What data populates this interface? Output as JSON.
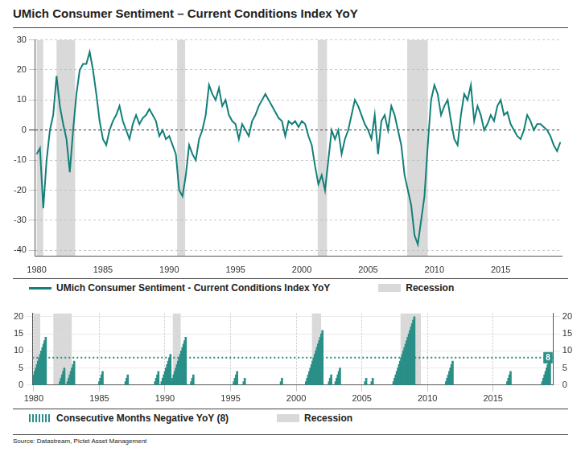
{
  "chart_data": [
    {
      "type": "line",
      "title": "UMich Consumer Sentiment – Current Conditions Index YoY",
      "x": [
        1980,
        1980.25,
        1980.5,
        1980.75,
        1981,
        1981.25,
        1981.5,
        1981.75,
        1982,
        1982.25,
        1982.5,
        1982.75,
        1983,
        1983.25,
        1983.5,
        1983.75,
        1984,
        1984.25,
        1984.5,
        1984.75,
        1985,
        1985.25,
        1985.5,
        1985.75,
        1986,
        1986.25,
        1986.5,
        1986.75,
        1987,
        1987.25,
        1987.5,
        1987.75,
        1988,
        1988.25,
        1988.5,
        1988.75,
        1989,
        1989.25,
        1989.5,
        1989.75,
        1990,
        1990.25,
        1990.5,
        1990.75,
        1991,
        1991.25,
        1991.5,
        1991.75,
        1992,
        1992.25,
        1992.5,
        1992.75,
        1993,
        1993.25,
        1993.5,
        1993.75,
        1994,
        1994.25,
        1994.5,
        1994.75,
        1995,
        1995.25,
        1995.5,
        1995.75,
        1996,
        1996.25,
        1996.5,
        1996.75,
        1997,
        1997.25,
        1997.5,
        1997.75,
        1998,
        1998.25,
        1998.5,
        1998.75,
        1999,
        1999.25,
        1999.5,
        1999.75,
        2000,
        2000.25,
        2000.5,
        2000.75,
        2001,
        2001.25,
        2001.5,
        2001.75,
        2002,
        2002.25,
        2002.5,
        2002.75,
        2003,
        2003.25,
        2003.5,
        2003.75,
        2004,
        2004.25,
        2004.5,
        2004.75,
        2005,
        2005.25,
        2005.5,
        2005.75,
        2006,
        2006.25,
        2006.5,
        2006.75,
        2007,
        2007.25,
        2007.5,
        2007.75,
        2008,
        2008.25,
        2008.5,
        2008.75,
        2009,
        2009.25,
        2009.5,
        2009.75,
        2010,
        2010.25,
        2010.5,
        2010.75,
        2011,
        2011.25,
        2011.5,
        2011.75,
        2012,
        2012.25,
        2012.5,
        2012.75,
        2013,
        2013.25,
        2013.5,
        2013.75,
        2014,
        2014.25,
        2014.5,
        2014.75,
        2015,
        2015.25,
        2015.5,
        2015.75,
        2016,
        2016.25,
        2016.5,
        2016.75,
        2017,
        2017.25,
        2017.5,
        2017.75,
        2018,
        2018.25,
        2018.5,
        2018.75,
        2019,
        2019.25,
        2019.5
      ],
      "series": [
        {
          "name": "UMich Consumer Sentiment - Current Conditions Index YoY",
          "color": "#137f78",
          "values": [
            -8,
            -6,
            -26,
            -10,
            0,
            5,
            18,
            8,
            2,
            -3,
            -14,
            0,
            12,
            20,
            22,
            22,
            26,
            20,
            12,
            3,
            -3,
            -5,
            0,
            3,
            5,
            8,
            3,
            0,
            -3,
            2,
            5,
            2,
            4,
            5,
            7,
            5,
            3,
            -2,
            0,
            -3,
            -2,
            -5,
            -8,
            -20,
            -22,
            -15,
            -5,
            -8,
            -10,
            -3,
            0,
            5,
            15,
            12,
            10,
            14,
            8,
            10,
            5,
            3,
            2,
            -3,
            2,
            0,
            -2,
            3,
            5,
            8,
            10,
            12,
            10,
            8,
            6,
            4,
            3,
            -2,
            3,
            2,
            3,
            1,
            3,
            2,
            -2,
            -5,
            -12,
            -18,
            -15,
            -20,
            -10,
            0,
            -3,
            0,
            -8,
            -3,
            0,
            5,
            10,
            8,
            5,
            2,
            0,
            -3,
            5,
            -8,
            3,
            5,
            0,
            8,
            5,
            0,
            -5,
            -15,
            -20,
            -25,
            -35,
            -38,
            -30,
            -22,
            -5,
            10,
            15,
            12,
            5,
            8,
            10,
            3,
            -3,
            -5,
            5,
            12,
            10,
            15,
            3,
            8,
            5,
            0,
            2,
            5,
            3,
            8,
            10,
            5,
            6,
            2,
            0,
            -2,
            -3,
            0,
            5,
            3,
            0,
            2,
            2,
            1,
            0,
            -2,
            -5,
            -7,
            -4
          ]
        }
      ],
      "recessions": [
        {
          "start": 1980.0,
          "end": 1980.5
        },
        {
          "start": 1981.5,
          "end": 1982.9
        },
        {
          "start": 1990.6,
          "end": 1991.2
        },
        {
          "start": 2001.2,
          "end": 2001.9
        },
        {
          "start": 2007.95,
          "end": 2009.5
        }
      ],
      "recession_label": "Recession",
      "xlim": [
        1979.9,
        2019.6
      ],
      "xticks": [
        1980,
        1985,
        1990,
        1995,
        2000,
        2005,
        2010,
        2015
      ],
      "ylim": [
        -42,
        30
      ],
      "yticks": [
        -40,
        -30,
        -20,
        -10,
        0,
        10,
        20,
        30
      ],
      "grid": true
    },
    {
      "type": "bar",
      "x": [
        1980,
        1980.083,
        1980.167,
        1980.25,
        1980.333,
        1980.417,
        1980.5,
        1980.583,
        1980.667,
        1980.75,
        1980.833,
        1980.917,
        1982,
        1982.083,
        1982.167,
        1982.25,
        1982.333,
        1982.583,
        1982.667,
        1982.75,
        1982.833,
        1982.917,
        1983,
        1983.083,
        1985,
        1985.083,
        1985.167,
        1985.25,
        1987,
        1987.083,
        1987.167,
        1989.25,
        1989.333,
        1989.417,
        1989.5,
        1989.75,
        1989.833,
        1989.917,
        1990,
        1990.083,
        1990.167,
        1990.25,
        1990.333,
        1990.417,
        1990.5,
        1990.583,
        1990.667,
        1990.75,
        1990.833,
        1990.917,
        1991,
        1991.083,
        1991.167,
        1991.25,
        1991.333,
        1991.417,
        1991.5,
        1991.583,
        1992,
        1992.083,
        1992.167,
        1995.25,
        1995.333,
        1995.417,
        1995.5,
        1996,
        1996.083,
        1998.833,
        1998.917,
        2000.75,
        2000.833,
        2000.917,
        2001,
        2001.083,
        2001.167,
        2001.25,
        2001.333,
        2001.417,
        2001.5,
        2001.583,
        2001.667,
        2001.75,
        2001.833,
        2001.917,
        2002,
        2002.5,
        2002.583,
        2002.667,
        2003,
        2003.083,
        2003.167,
        2003.25,
        2003.333,
        2005.25,
        2005.333,
        2005.75,
        2005.833,
        2007.417,
        2007.5,
        2007.583,
        2007.667,
        2007.75,
        2007.833,
        2007.917,
        2008,
        2008.083,
        2008.167,
        2008.25,
        2008.333,
        2008.417,
        2008.5,
        2008.583,
        2008.667,
        2008.75,
        2008.833,
        2008.917,
        2009,
        2011.417,
        2011.5,
        2011.583,
        2011.667,
        2011.75,
        2011.833,
        2011.917,
        2016.083,
        2016.167,
        2016.25,
        2016.333,
        2018.75,
        2018.833,
        2018.917,
        2019,
        2019.083,
        2019.167,
        2019.25,
        2019.333
      ],
      "series": [
        {
          "name": "Consecutive Months Negative YoY (8)",
          "color": "#2a8f87",
          "values": [
            3,
            4,
            5,
            6,
            7,
            8,
            9,
            10,
            11,
            12,
            13,
            14,
            1,
            2,
            3,
            4,
            5,
            1,
            2,
            3,
            4,
            5,
            6,
            7,
            1,
            2,
            3,
            4,
            1,
            2,
            3,
            1,
            2,
            3,
            4,
            1,
            2,
            3,
            4,
            5,
            6,
            7,
            8,
            9,
            1,
            2,
            3,
            4,
            5,
            6,
            7,
            8,
            9,
            10,
            11,
            12,
            13,
            14,
            1,
            2,
            3,
            1,
            2,
            3,
            4,
            1,
            2,
            1,
            2,
            1,
            2,
            3,
            4,
            5,
            6,
            7,
            8,
            9,
            10,
            11,
            12,
            13,
            14,
            15,
            16,
            1,
            2,
            3,
            1,
            2,
            3,
            4,
            5,
            1,
            2,
            1,
            2,
            1,
            2,
            3,
            4,
            5,
            6,
            7,
            8,
            9,
            10,
            11,
            12,
            13,
            14,
            15,
            16,
            17,
            18,
            19,
            20,
            1,
            2,
            3,
            4,
            5,
            6,
            7,
            1,
            2,
            3,
            4,
            1,
            2,
            3,
            4,
            5,
            6,
            7,
            8
          ]
        }
      ],
      "recessions": [
        {
          "start": 1980.0,
          "end": 1980.5
        },
        {
          "start": 1981.5,
          "end": 1982.9
        },
        {
          "start": 1990.6,
          "end": 1991.2
        },
        {
          "start": 2001.2,
          "end": 2001.9
        },
        {
          "start": 2007.95,
          "end": 2009.5
        }
      ],
      "recession_label": "Recession",
      "threshold": 8,
      "xlim": [
        1979.9,
        2019.6
      ],
      "xticks": [
        1980,
        1985,
        1990,
        1995,
        2000,
        2005,
        2010,
        2015
      ],
      "ylim": [
        0,
        21
      ],
      "yticks": [
        0,
        5,
        10,
        15,
        20
      ],
      "y2lim": [
        0,
        21
      ],
      "y2ticks": [
        0,
        5,
        10,
        15,
        20
      ],
      "grid": true
    }
  ],
  "source": "Source: Datastream, Pictet Asset Management"
}
